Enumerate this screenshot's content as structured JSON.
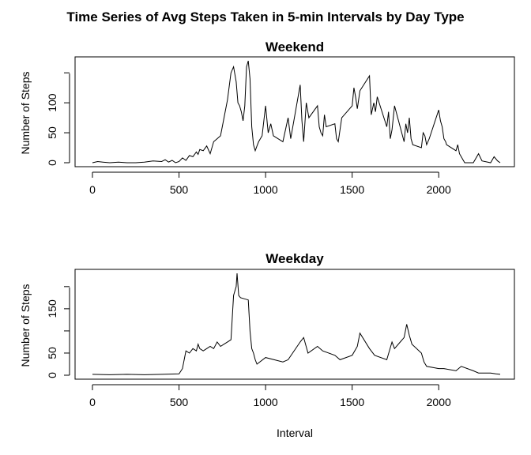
{
  "figure": {
    "title": "Time Series of Avg Steps Taken in 5-min Intervals by Day Type",
    "xlabel": "Interval"
  },
  "chart_data": [
    {
      "type": "line",
      "title": "Weekend",
      "xlabel": "",
      "ylabel": "Number of Steps",
      "xlim": [
        0,
        2355
      ],
      "ylim": [
        0,
        170
      ],
      "xticks": [
        0,
        500,
        1000,
        1500,
        2000
      ],
      "yticks": [
        0,
        50,
        100
      ],
      "grid": false,
      "line_color": "#000000",
      "series": [
        {
          "x": [
            0,
            30,
            60,
            100,
            150,
            200,
            250,
            300,
            350,
            400,
            420,
            440,
            460,
            480,
            500,
            520,
            540,
            560,
            580,
            600,
            610,
            620,
            640,
            660,
            680,
            700,
            720,
            740,
            760,
            780,
            800,
            815,
            830,
            840,
            850,
            860,
            870,
            880,
            890,
            900,
            910,
            920,
            930,
            940,
            950,
            960,
            980,
            1000,
            1015,
            1030,
            1045,
            1100,
            1130,
            1145,
            1200,
            1210,
            1220,
            1235,
            1250,
            1300,
            1310,
            1320,
            1330,
            1340,
            1350,
            1400,
            1410,
            1420,
            1440,
            1500,
            1510,
            1520,
            1530,
            1545,
            1600,
            1610,
            1625,
            1635,
            1645,
            1700,
            1710,
            1720,
            1730,
            1745,
            1800,
            1810,
            1820,
            1830,
            1840,
            1850,
            1900,
            1910,
            1920,
            1930,
            1945,
            2000,
            2010,
            2020,
            2030,
            2040,
            2045,
            2100,
            2110,
            2120,
            2130,
            2140,
            2150,
            2200,
            2230,
            2250,
            2300,
            2320,
            2340,
            2355
          ],
          "y": [
            0,
            2,
            1,
            0,
            1,
            0,
            0,
            1,
            3,
            2,
            5,
            1,
            4,
            0,
            2,
            8,
            4,
            12,
            10,
            18,
            14,
            22,
            20,
            28,
            15,
            35,
            40,
            45,
            75,
            105,
            150,
            160,
            135,
            100,
            95,
            85,
            70,
            95,
            160,
            170,
            140,
            60,
            30,
            20,
            28,
            35,
            45,
            95,
            50,
            65,
            45,
            35,
            75,
            40,
            130,
            70,
            35,
            100,
            75,
            95,
            60,
            50,
            45,
            80,
            60,
            65,
            40,
            35,
            75,
            95,
            125,
            110,
            90,
            120,
            145,
            80,
            100,
            85,
            110,
            60,
            85,
            40,
            55,
            95,
            35,
            65,
            50,
            75,
            40,
            30,
            25,
            50,
            45,
            30,
            40,
            88,
            70,
            60,
            40,
            35,
            30,
            20,
            30,
            15,
            10,
            5,
            0,
            0,
            15,
            3,
            0,
            10,
            3,
            0
          ]
        }
      ]
    },
    {
      "type": "line",
      "title": "Weekday",
      "xlabel": "",
      "ylabel": "Number of Steps",
      "xlim": [
        0,
        2355
      ],
      "ylim": [
        0,
        230
      ],
      "xticks": [
        0,
        500,
        1000,
        1500,
        2000
      ],
      "yticks": [
        0,
        50,
        150
      ],
      "grid": false,
      "line_color": "#000000",
      "series": [
        {
          "x": [
            0,
            100,
            200,
            300,
            400,
            500,
            520,
            540,
            560,
            580,
            600,
            610,
            620,
            640,
            660,
            680,
            700,
            720,
            740,
            760,
            780,
            800,
            815,
            830,
            835,
            845,
            855,
            900,
            910,
            920,
            930,
            940,
            950,
            1000,
            1100,
            1130,
            1200,
            1220,
            1245,
            1300,
            1330,
            1400,
            1430,
            1500,
            1530,
            1545,
            1600,
            1630,
            1700,
            1730,
            1745,
            1800,
            1815,
            1830,
            1845,
            1900,
            1915,
            1930,
            2000,
            2030,
            2100,
            2130,
            2200,
            2230,
            2300,
            2330,
            2355
          ],
          "y": [
            2,
            1,
            2,
            1,
            2,
            3,
            15,
            55,
            50,
            60,
            55,
            70,
            60,
            55,
            60,
            65,
            60,
            75,
            65,
            70,
            75,
            80,
            180,
            200,
            230,
            180,
            175,
            170,
            100,
            60,
            50,
            35,
            25,
            40,
            30,
            35,
            75,
            85,
            50,
            65,
            55,
            45,
            35,
            45,
            65,
            95,
            60,
            45,
            35,
            75,
            60,
            85,
            115,
            90,
            70,
            50,
            30,
            20,
            15,
            15,
            10,
            20,
            10,
            5,
            5,
            3,
            2
          ]
        }
      ]
    }
  ]
}
